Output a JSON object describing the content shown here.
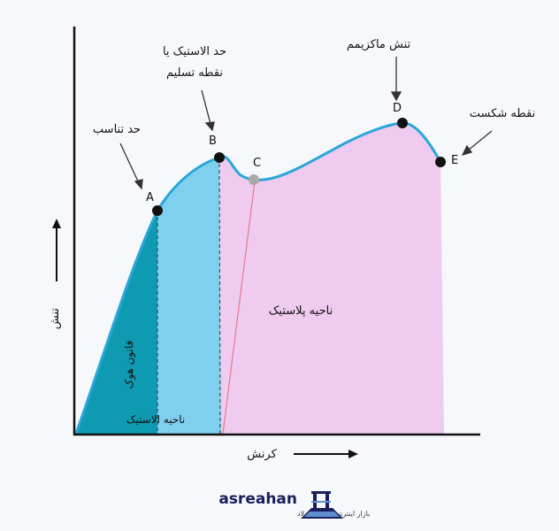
{
  "diagram": {
    "points": [
      {
        "id": "A",
        "name": "proportional-limit-point"
      },
      {
        "id": "B",
        "name": "yield-point"
      },
      {
        "id": "C",
        "name": "lower-yield-point"
      },
      {
        "id": "D",
        "name": "ultimate-stress-point"
      },
      {
        "id": "E",
        "name": "fracture-point"
      }
    ],
    "annotations": {
      "proportional_limit": "حد تناسب",
      "yield_line1": "حد الاستیک یا",
      "yield_line2": "نقطه تسلیم",
      "ultimate_stress": "تنش ماکزیمم",
      "fracture": "نقطه شکست"
    },
    "regions": {
      "hooke": "قانون هوک",
      "elastic": "ناحیه الاستیک",
      "plastic": "ناحیه پلاستیک"
    },
    "axes": {
      "y_label": "تنش",
      "x_label": "کرنش"
    },
    "colors": {
      "hooke_region": "#0e9bb1",
      "elastic_region": "#7fd0ef",
      "plastic_region": "#efcbef",
      "curve": "#2aa6d9",
      "point": "#111111",
      "point_c": "#a9a9a9"
    }
  },
  "brand": {
    "name": "asreahan",
    "tagline": "بازار اینترنتی آهن و فولاد"
  }
}
